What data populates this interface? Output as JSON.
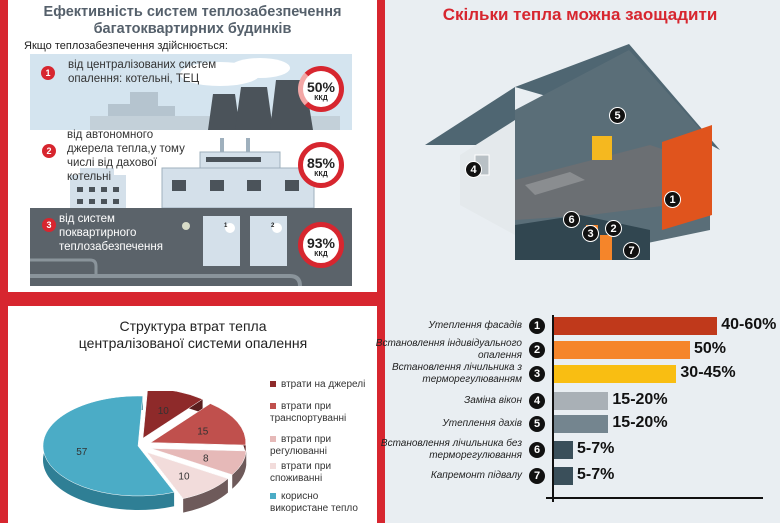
{
  "efficiency": {
    "title_line1": "Ефективність систем теплозабезпечення",
    "title_line2": "багатоквартирних будинків",
    "intro": "Якщо теплозабезпечення здійснюється:",
    "items": [
      {
        "num": "1",
        "text": "від централізованих систем опалення: котельні, ТЕЦ",
        "value": "50%",
        "unit": "ККД",
        "level": 50
      },
      {
        "num": "2",
        "text": "від автономного джерела тепла,у тому числі від дахової котельні",
        "value": "85%",
        "unit": "ККД",
        "level": 85
      },
      {
        "num": "3",
        "text": "від систем поквартирного теплозабезпечення",
        "value": "93%",
        "unit": "ККД",
        "level": 93
      }
    ],
    "boiler_labels": [
      "1",
      "2"
    ]
  },
  "chart_data": {
    "type": "pie",
    "title": "Структура втрат тепла централізованої системи опалення",
    "title_line1": "Структура втрат тепла",
    "title_line2": "централізованої системи опалення",
    "legend_position": "right",
    "series": [
      {
        "name": "втрати на джерелі",
        "value": 10,
        "color": "#8e2a2a"
      },
      {
        "name": "втрати при транспортуванні",
        "value": 15,
        "color": "#c0504d"
      },
      {
        "name": "втрати при регулюванні",
        "value": 8,
        "color": "#e6b9b8"
      },
      {
        "name": "втрати при споживанні",
        "value": 10,
        "color": "#f2dcdb"
      },
      {
        "name": "корисно використане тепло",
        "value": 57,
        "color": "#4bacc6"
      }
    ]
  },
  "savings": {
    "title": "Скільки тепла можна заощадити",
    "house_markers": [
      "1",
      "2",
      "3",
      "4",
      "5",
      "6",
      "7"
    ],
    "items": [
      {
        "num": "1",
        "label": "Утеплення фасадів",
        "value": "40-60%",
        "low": 40,
        "high": 60,
        "color": "#c0391b"
      },
      {
        "num": "2",
        "label": "Встановлення індивідуального опалення",
        "value": "50%",
        "low": 50,
        "high": 50,
        "color": "#f5852a"
      },
      {
        "num": "3",
        "label": "Встановлення лічильника з терморегулюванням",
        "value": "30-45%",
        "low": 30,
        "high": 45,
        "color": "#f9be12"
      },
      {
        "num": "4",
        "label": "Заміна вікон",
        "value": "15-20%",
        "low": 15,
        "high": 20,
        "color": "#a9b0b6"
      },
      {
        "num": "5",
        "label": "Утеплення дахів",
        "value": "15-20%",
        "low": 15,
        "high": 20,
        "color": "#74858f"
      },
      {
        "num": "6",
        "label": "Встановлення лічильника без терморегулювання",
        "value": "5-7%",
        "low": 5,
        "high": 7,
        "color": "#3a4f5a"
      },
      {
        "num": "7",
        "label": "Капремонт підвалу",
        "value": "5-7%",
        "low": 5,
        "high": 7,
        "color": "#3a4f5a"
      }
    ]
  }
}
